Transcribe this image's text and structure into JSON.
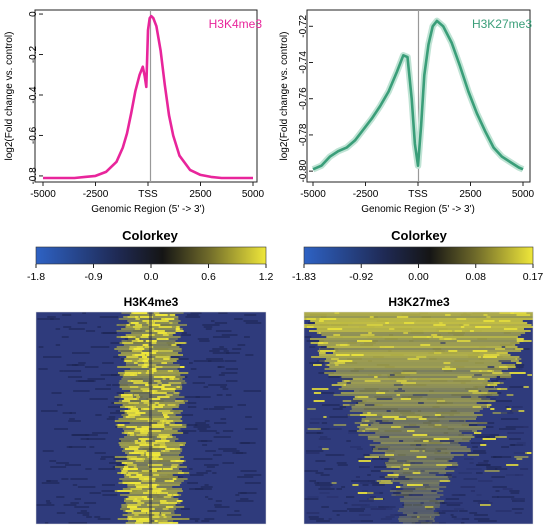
{
  "chart_data": [
    {
      "type": "line",
      "title": "H3K4me3",
      "xlabel": "Genomic Region (5' -> 3')",
      "ylabel": "log2(Fold change vs. control)",
      "xlim": [
        -5000,
        5000
      ],
      "ylim": [
        -0.83,
        0.02
      ],
      "x_ticks": [
        -5000,
        -2500,
        0,
        2500,
        5000
      ],
      "x_tick_labels": [
        "-5000",
        "-2500",
        "TSS",
        "2500",
        "5000"
      ],
      "y_ticks": [
        0,
        -0.2,
        -0.4,
        -0.6,
        -0.8
      ],
      "y_tick_labels": [
        "0",
        "-0.2",
        "-0.4",
        "-0.6",
        "-0.8"
      ],
      "vline_x": 0,
      "color": "#e8259b",
      "series": [
        {
          "x": [
            -5000,
            -4500,
            -4000,
            -3500,
            -3000,
            -2500,
            -2000,
            -1500,
            -1200,
            -1000,
            -800,
            -600,
            -400,
            -250,
            -150,
            -80,
            0,
            80,
            150,
            250,
            400,
            600,
            800,
            1000,
            1200,
            1500,
            2000,
            2500,
            3000,
            3500,
            4000,
            4500,
            5000
          ],
          "values": [
            -0.81,
            -0.81,
            -0.81,
            -0.81,
            -0.805,
            -0.8,
            -0.78,
            -0.73,
            -0.66,
            -0.59,
            -0.49,
            -0.38,
            -0.3,
            -0.26,
            -0.31,
            -0.36,
            -0.08,
            -0.02,
            -0.01,
            -0.02,
            -0.06,
            -0.18,
            -0.35,
            -0.5,
            -0.6,
            -0.7,
            -0.77,
            -0.795,
            -0.805,
            -0.81,
            -0.81,
            -0.81,
            -0.81
          ]
        }
      ]
    },
    {
      "type": "line",
      "title": "H3K27me3",
      "xlabel": "Genomic Region (5' -> 3')",
      "ylabel": "log2(Fold change vs. control)",
      "xlim": [
        -5000,
        5000
      ],
      "ylim": [
        -0.806,
        -0.711
      ],
      "x_ticks": [
        -5000,
        -2500,
        0,
        2500,
        5000
      ],
      "x_tick_labels": [
        "-5000",
        "-2500",
        "TSS",
        "2500",
        "5000"
      ],
      "y_ticks": [
        -0.72,
        -0.74,
        -0.76,
        -0.78,
        -0.8
      ],
      "y_tick_labels": [
        "-0.72",
        "-0.74",
        "-0.76",
        "-0.78",
        "-0.80"
      ],
      "vline_x": 0,
      "color": "#3a9e79",
      "series": [
        {
          "x": [
            -5000,
            -4600,
            -4200,
            -3800,
            -3400,
            -3000,
            -2600,
            -2200,
            -1800,
            -1400,
            -1000,
            -700,
            -500,
            -300,
            -150,
            0,
            150,
            300,
            500,
            700,
            900,
            1200,
            1600,
            2000,
            2400,
            2800,
            3200,
            3600,
            4000,
            4400,
            4800,
            5000
          ],
          "values": [
            -0.799,
            -0.797,
            -0.792,
            -0.789,
            -0.787,
            -0.783,
            -0.777,
            -0.771,
            -0.764,
            -0.756,
            -0.745,
            -0.736,
            -0.737,
            -0.76,
            -0.785,
            -0.797,
            -0.775,
            -0.747,
            -0.73,
            -0.72,
            -0.717,
            -0.72,
            -0.729,
            -0.742,
            -0.756,
            -0.768,
            -0.778,
            -0.787,
            -0.792,
            -0.795,
            -0.798,
            -0.799
          ]
        }
      ]
    },
    {
      "type": "heatmap",
      "title": "H3K4me3",
      "colorkey_title": "Colorkey",
      "colorkey_ticks": [
        "-1.8",
        "-0.9",
        "0.0",
        "0.6",
        "1.2"
      ],
      "colorkey_range": [
        -1.8,
        1.2
      ],
      "colors": [
        "#2e62c4",
        "#151b2e",
        "#efe73a"
      ],
      "background": "#2f3b7c",
      "pattern": "central_band"
    },
    {
      "type": "heatmap",
      "title": "H3K27me3",
      "colorkey_title": "Colorkey",
      "colorkey_ticks": [
        "-1.83",
        "-0.92",
        "0.00",
        "0.08",
        "0.17"
      ],
      "colorkey_range": [
        -1.83,
        0.17
      ],
      "colors": [
        "#2e62c4",
        "#151b2e",
        "#efe73a"
      ],
      "background": "#2f3b7c",
      "pattern": "top_triangle"
    }
  ]
}
